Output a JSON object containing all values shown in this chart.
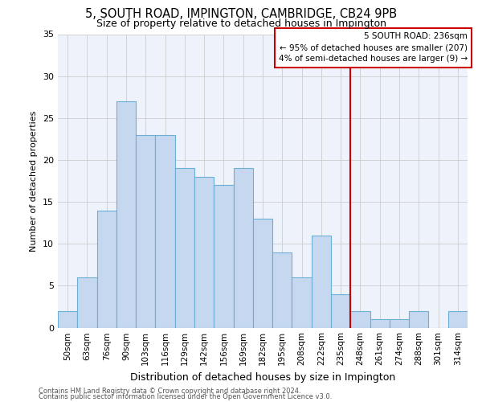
{
  "title": "5, SOUTH ROAD, IMPINGTON, CAMBRIDGE, CB24 9PB",
  "subtitle": "Size of property relative to detached houses in Impington",
  "xlabel": "Distribution of detached houses by size in Impington",
  "ylabel": "Number of detached properties",
  "categories": [
    "50sqm",
    "63sqm",
    "76sqm",
    "90sqm",
    "103sqm",
    "116sqm",
    "129sqm",
    "142sqm",
    "156sqm",
    "169sqm",
    "182sqm",
    "195sqm",
    "208sqm",
    "222sqm",
    "235sqm",
    "248sqm",
    "261sqm",
    "274sqm",
    "288sqm",
    "301sqm",
    "314sqm"
  ],
  "bar_heights": [
    2,
    6,
    14,
    27,
    23,
    23,
    19,
    18,
    17,
    19,
    13,
    9,
    6,
    11,
    4,
    2,
    1,
    1,
    2,
    0,
    2
  ],
  "bar_color": "#c5d8f0",
  "bar_edge_color": "#6baed6",
  "grid_color": "#cccccc",
  "vline_x": 14.5,
  "vline_color": "#cc0000",
  "annotation_line1": "5 SOUTH ROAD: 236sqm",
  "annotation_line2": "← 95% of detached houses are smaller (207)",
  "annotation_line3": "4% of semi-detached houses are larger (9) →",
  "box_edge_color": "#cc0000",
  "ylim": [
    0,
    35
  ],
  "yticks": [
    0,
    5,
    10,
    15,
    20,
    25,
    30,
    35
  ],
  "footnote1": "Contains HM Land Registry data © Crown copyright and database right 2024.",
  "footnote2": "Contains public sector information licensed under the Open Government Licence v3.0.",
  "plot_bg_color": "#eef2fb",
  "fig_bg_color": "#ffffff",
  "title_fontsize": 10.5,
  "subtitle_fontsize": 9,
  "ylabel_fontsize": 8,
  "xlabel_fontsize": 9,
  "tick_fontsize": 7.5,
  "annot_fontsize": 7.5,
  "footnote_fontsize": 6
}
